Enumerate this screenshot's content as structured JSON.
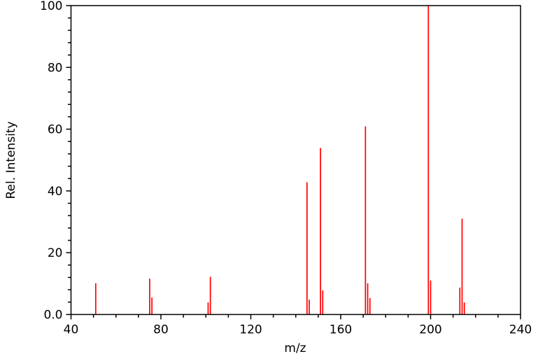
{
  "figure": {
    "background_color": "#ffffff",
    "axis_color": "#000000",
    "peak_color": "#ff0000"
  },
  "chart_data": {
    "type": "bar",
    "subtype": "mass-spectrum-stick-plot",
    "title": "",
    "xlabel": "m/z",
    "ylabel": "Rel. Intensity",
    "xlim": [
      40,
      240
    ],
    "ylim": [
      0,
      100
    ],
    "grid": false,
    "legend": false,
    "frame": "full-box",
    "x_major_ticks": [
      40,
      80,
      120,
      160,
      200,
      240
    ],
    "x_major_tick_labels": [
      "40",
      "80",
      "120",
      "160",
      "200",
      "240"
    ],
    "x_minor_step": 10,
    "y_major_ticks": [
      0,
      20,
      40,
      60,
      80,
      100
    ],
    "y_major_tick_labels": [
      "0.0",
      "20",
      "40",
      "60",
      "80",
      "100"
    ],
    "y_minor_step": 4,
    "peaks": [
      {
        "mz": 51,
        "intensity": 10.1
      },
      {
        "mz": 75,
        "intensity": 11.6
      },
      {
        "mz": 76,
        "intensity": 5.5
      },
      {
        "mz": 101,
        "intensity": 3.9
      },
      {
        "mz": 102,
        "intensity": 12.2
      },
      {
        "mz": 145,
        "intensity": 42.8
      },
      {
        "mz": 146,
        "intensity": 4.8
      },
      {
        "mz": 151,
        "intensity": 53.9
      },
      {
        "mz": 152,
        "intensity": 7.8
      },
      {
        "mz": 171,
        "intensity": 60.9
      },
      {
        "mz": 172,
        "intensity": 10.1
      },
      {
        "mz": 173,
        "intensity": 5.3
      },
      {
        "mz": 199,
        "intensity": 100.0
      },
      {
        "mz": 200,
        "intensity": 11.0
      },
      {
        "mz": 213,
        "intensity": 8.7
      },
      {
        "mz": 214,
        "intensity": 31.0
      },
      {
        "mz": 215,
        "intensity": 3.9
      }
    ],
    "base_peak_mz": 199
  }
}
